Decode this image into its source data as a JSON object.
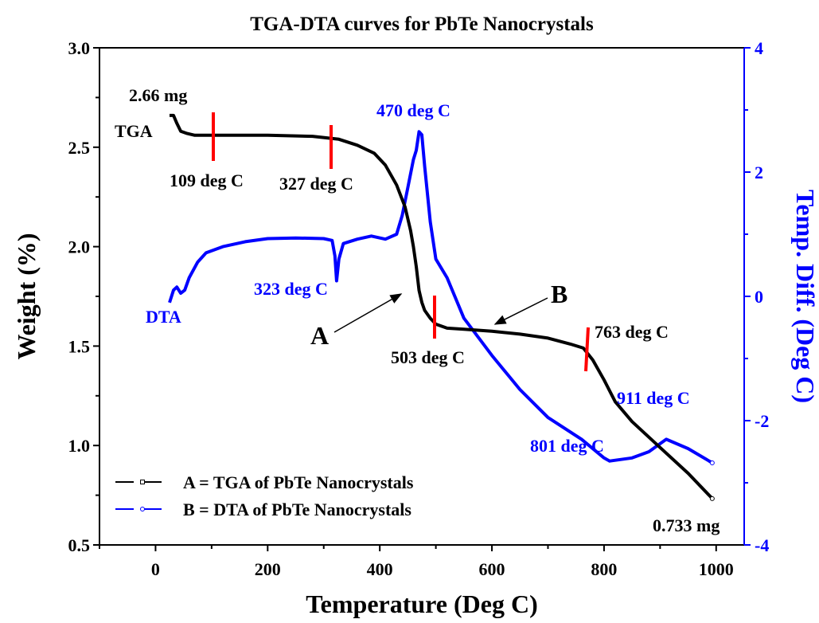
{
  "chart_data": {
    "type": "line",
    "title": "TGA-DTA curves for PbTe Nanocrystals",
    "xlabel": "Temperature (Deg C)",
    "ylabel": "Weight (%)",
    "y2label": "Temp. Diff. (Deg C)",
    "xlim": [
      -100,
      1050
    ],
    "ylim": [
      0.5,
      3.0
    ],
    "y2lim": [
      -4,
      4
    ],
    "xticks": [
      "0",
      "200",
      "400",
      "600",
      "800",
      "1000"
    ],
    "yticks": [
      "0.5",
      "1.0",
      "1.5",
      "2.0",
      "2.5",
      "3.0"
    ],
    "y2ticks": [
      "-4",
      "-2",
      "0",
      "2",
      "4"
    ],
    "legend": {
      "position": "bottom-left",
      "entries": [
        "A = TGA of PbTe Nanocrystals",
        "B = DTA of PbTe Nanocrystals"
      ]
    },
    "series": [
      {
        "name": "A = TGA of PbTe Nanocrystals",
        "axis": "left",
        "color": "#000000",
        "x": [
          25,
          32,
          38,
          45,
          55,
          70,
          90,
          120,
          200,
          280,
          327,
          360,
          390,
          410,
          430,
          445,
          455,
          460,
          465,
          470,
          475,
          480,
          490,
          500,
          520,
          550,
          600,
          650,
          700,
          740,
          763,
          780,
          800,
          820,
          850,
          900,
          950,
          993
        ],
        "y": [
          2.66,
          2.66,
          2.62,
          2.58,
          2.57,
          2.56,
          2.56,
          2.56,
          2.56,
          2.555,
          2.54,
          2.51,
          2.47,
          2.41,
          2.31,
          2.2,
          2.08,
          2.0,
          1.9,
          1.78,
          1.72,
          1.68,
          1.64,
          1.61,
          1.59,
          1.585,
          1.575,
          1.56,
          1.54,
          1.51,
          1.49,
          1.43,
          1.33,
          1.22,
          1.12,
          0.99,
          0.86,
          0.733
        ]
      },
      {
        "name": "B = DTA of PbTe Nanocrystals",
        "axis": "right",
        "color": "#0000ff",
        "x": [
          25,
          32,
          38,
          45,
          52,
          60,
          75,
          90,
          120,
          160,
          200,
          250,
          300,
          315,
          320,
          323,
          327,
          335,
          360,
          385,
          410,
          430,
          440,
          450,
          460,
          465,
          470,
          475,
          480,
          490,
          500,
          520,
          550,
          600,
          650,
          700,
          760,
          800,
          810,
          850,
          880,
          911,
          950,
          993
        ],
        "y": [
          -0.1,
          0.1,
          0.15,
          0.05,
          0.1,
          0.3,
          0.55,
          0.7,
          0.8,
          0.88,
          0.93,
          0.94,
          0.93,
          0.9,
          0.65,
          0.25,
          0.6,
          0.85,
          0.92,
          0.97,
          0.92,
          1.0,
          1.3,
          1.75,
          2.2,
          2.35,
          2.65,
          2.6,
          2.1,
          1.2,
          0.6,
          0.3,
          -0.35,
          -0.95,
          -1.5,
          -1.95,
          -2.3,
          -2.6,
          -2.65,
          -2.6,
          -2.5,
          -2.3,
          -2.45,
          -2.68
        ]
      }
    ],
    "annotations": {
      "tga_label": "TGA",
      "dta_label": "DTA",
      "start_mass": "2.66 mg",
      "end_mass": "0.733 mg",
      "marker_a": "A",
      "marker_b": "B",
      "tga_temps": [
        "109 deg C",
        "327 deg C",
        "503 deg C",
        "763 deg C"
      ],
      "dta_temps": [
        "323 deg C",
        "470 deg C",
        "801 deg C",
        "911 deg C"
      ]
    },
    "colors": {
      "tga": "#000000",
      "dta": "#0000ff",
      "markers": "#ff0000"
    }
  }
}
